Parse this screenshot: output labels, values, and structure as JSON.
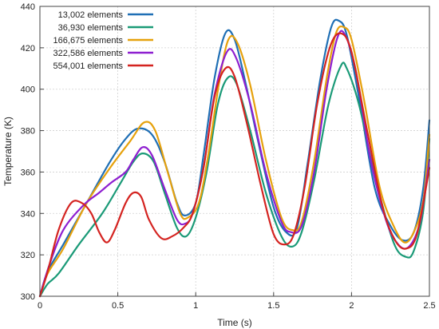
{
  "chart_data": {
    "type": "line",
    "title": "",
    "xlabel": "Time (s)",
    "ylabel": "Temperature (K)",
    "xlim": [
      0,
      2.5
    ],
    "ylim": [
      300,
      440
    ],
    "xticks": [
      0,
      0.5,
      1,
      1.5,
      2,
      2.5
    ],
    "xtick_labels": [
      "0",
      "0.5",
      "1",
      "1.5",
      "2",
      "2.5"
    ],
    "yticks": [
      300,
      320,
      340,
      360,
      380,
      400,
      420,
      440
    ],
    "ytick_labels": [
      "300",
      "320",
      "340",
      "360",
      "380",
      "400",
      "420",
      "440"
    ],
    "grid": true,
    "legend_position": "top-left",
    "series": [
      {
        "name": "13,002 elements",
        "color": "#1f6fb5",
        "points": [
          [
            0,
            300
          ],
          [
            0.05,
            312
          ],
          [
            0.15,
            325
          ],
          [
            0.3,
            345
          ],
          [
            0.45,
            365
          ],
          [
            0.55,
            376
          ],
          [
            0.63,
            381
          ],
          [
            0.72,
            378
          ],
          [
            0.8,
            365
          ],
          [
            0.88,
            345
          ],
          [
            0.93,
            339
          ],
          [
            1.0,
            345
          ],
          [
            1.05,
            368
          ],
          [
            1.12,
            405
          ],
          [
            1.19,
            427
          ],
          [
            1.25,
            424
          ],
          [
            1.32,
            403
          ],
          [
            1.4,
            375
          ],
          [
            1.5,
            343
          ],
          [
            1.58,
            331
          ],
          [
            1.65,
            333
          ],
          [
            1.72,
            365
          ],
          [
            1.8,
            405
          ],
          [
            1.87,
            430
          ],
          [
            1.92,
            433
          ],
          [
            1.97,
            426
          ],
          [
            2.05,
            395
          ],
          [
            2.15,
            352
          ],
          [
            2.25,
            334
          ],
          [
            2.33,
            327
          ],
          [
            2.4,
            331
          ],
          [
            2.46,
            352
          ],
          [
            2.5,
            385
          ]
        ]
      },
      {
        "name": "36,930 elements",
        "color": "#1a9a77",
        "points": [
          [
            0,
            300
          ],
          [
            0.05,
            306
          ],
          [
            0.12,
            311
          ],
          [
            0.25,
            325
          ],
          [
            0.4,
            340
          ],
          [
            0.52,
            355
          ],
          [
            0.6,
            365
          ],
          [
            0.66,
            369
          ],
          [
            0.73,
            365
          ],
          [
            0.8,
            350
          ],
          [
            0.88,
            333
          ],
          [
            0.94,
            329
          ],
          [
            1.0,
            338
          ],
          [
            1.07,
            360
          ],
          [
            1.14,
            392
          ],
          [
            1.2,
            405
          ],
          [
            1.26,
            403
          ],
          [
            1.35,
            380
          ],
          [
            1.45,
            350
          ],
          [
            1.55,
            329
          ],
          [
            1.62,
            324
          ],
          [
            1.68,
            331
          ],
          [
            1.76,
            356
          ],
          [
            1.85,
            392
          ],
          [
            1.93,
            411
          ],
          [
            1.97,
            410
          ],
          [
            2.05,
            392
          ],
          [
            2.15,
            358
          ],
          [
            2.27,
            326
          ],
          [
            2.35,
            319
          ],
          [
            2.4,
            322
          ],
          [
            2.46,
            341
          ],
          [
            2.5,
            376
          ]
        ]
      },
      {
        "name": "166,675 elements",
        "color": "#e6a10c",
        "points": [
          [
            0,
            300
          ],
          [
            0.05,
            311
          ],
          [
            0.15,
            323
          ],
          [
            0.3,
            345
          ],
          [
            0.45,
            362
          ],
          [
            0.58,
            375
          ],
          [
            0.67,
            384
          ],
          [
            0.74,
            380
          ],
          [
            0.82,
            360
          ],
          [
            0.9,
            340
          ],
          [
            0.95,
            338
          ],
          [
            1.02,
            345
          ],
          [
            1.08,
            368
          ],
          [
            1.15,
            403
          ],
          [
            1.21,
            424
          ],
          [
            1.27,
            422
          ],
          [
            1.35,
            402
          ],
          [
            1.45,
            366
          ],
          [
            1.55,
            338
          ],
          [
            1.62,
            332
          ],
          [
            1.68,
            336
          ],
          [
            1.76,
            365
          ],
          [
            1.84,
            405
          ],
          [
            1.9,
            427
          ],
          [
            1.95,
            430
          ],
          [
            2.0,
            424
          ],
          [
            2.08,
            395
          ],
          [
            2.18,
            353
          ],
          [
            2.27,
            334
          ],
          [
            2.34,
            326
          ],
          [
            2.4,
            331
          ],
          [
            2.46,
            346
          ],
          [
            2.5,
            378
          ]
        ]
      },
      {
        "name": "322,586 elements",
        "color": "#8e1fd0",
        "points": [
          [
            0,
            300
          ],
          [
            0.06,
            315
          ],
          [
            0.15,
            332
          ],
          [
            0.28,
            344
          ],
          [
            0.38,
            350
          ],
          [
            0.46,
            355
          ],
          [
            0.55,
            360
          ],
          [
            0.6,
            366
          ],
          [
            0.66,
            372
          ],
          [
            0.72,
            368
          ],
          [
            0.8,
            352
          ],
          [
            0.88,
            337
          ],
          [
            0.93,
            335
          ],
          [
            0.98,
            340
          ],
          [
            1.05,
            362
          ],
          [
            1.12,
            397
          ],
          [
            1.2,
            418
          ],
          [
            1.26,
            415
          ],
          [
            1.35,
            393
          ],
          [
            1.45,
            360
          ],
          [
            1.55,
            336
          ],
          [
            1.61,
            331
          ],
          [
            1.68,
            334
          ],
          [
            1.76,
            360
          ],
          [
            1.84,
            400
          ],
          [
            1.91,
            425
          ],
          [
            1.96,
            426
          ],
          [
            2.03,
            408
          ],
          [
            2.12,
            367
          ],
          [
            2.22,
            337
          ],
          [
            2.3,
            325
          ],
          [
            2.37,
            324
          ],
          [
            2.44,
            336
          ],
          [
            2.5,
            366
          ]
        ]
      },
      {
        "name": "554,001 elements",
        "color": "#d42320",
        "points": [
          [
            0,
            300
          ],
          [
            0.05,
            312
          ],
          [
            0.12,
            332
          ],
          [
            0.2,
            345
          ],
          [
            0.27,
            345
          ],
          [
            0.33,
            340
          ],
          [
            0.38,
            331
          ],
          [
            0.43,
            326
          ],
          [
            0.48,
            332
          ],
          [
            0.55,
            345
          ],
          [
            0.6,
            350
          ],
          [
            0.65,
            348
          ],
          [
            0.7,
            337
          ],
          [
            0.78,
            328
          ],
          [
            0.85,
            329
          ],
          [
            0.92,
            333
          ],
          [
            0.98,
            340
          ],
          [
            1.05,
            362
          ],
          [
            1.12,
            396
          ],
          [
            1.19,
            410
          ],
          [
            1.25,
            406
          ],
          [
            1.33,
            383
          ],
          [
            1.42,
            353
          ],
          [
            1.5,
            330
          ],
          [
            1.57,
            325
          ],
          [
            1.63,
            330
          ],
          [
            1.7,
            353
          ],
          [
            1.78,
            393
          ],
          [
            1.86,
            420
          ],
          [
            1.93,
            427
          ],
          [
            2.0,
            418
          ],
          [
            2.1,
            380
          ],
          [
            2.2,
            343
          ],
          [
            2.28,
            327
          ],
          [
            2.35,
            323
          ],
          [
            2.42,
            330
          ],
          [
            2.5,
            362
          ]
        ]
      }
    ]
  }
}
